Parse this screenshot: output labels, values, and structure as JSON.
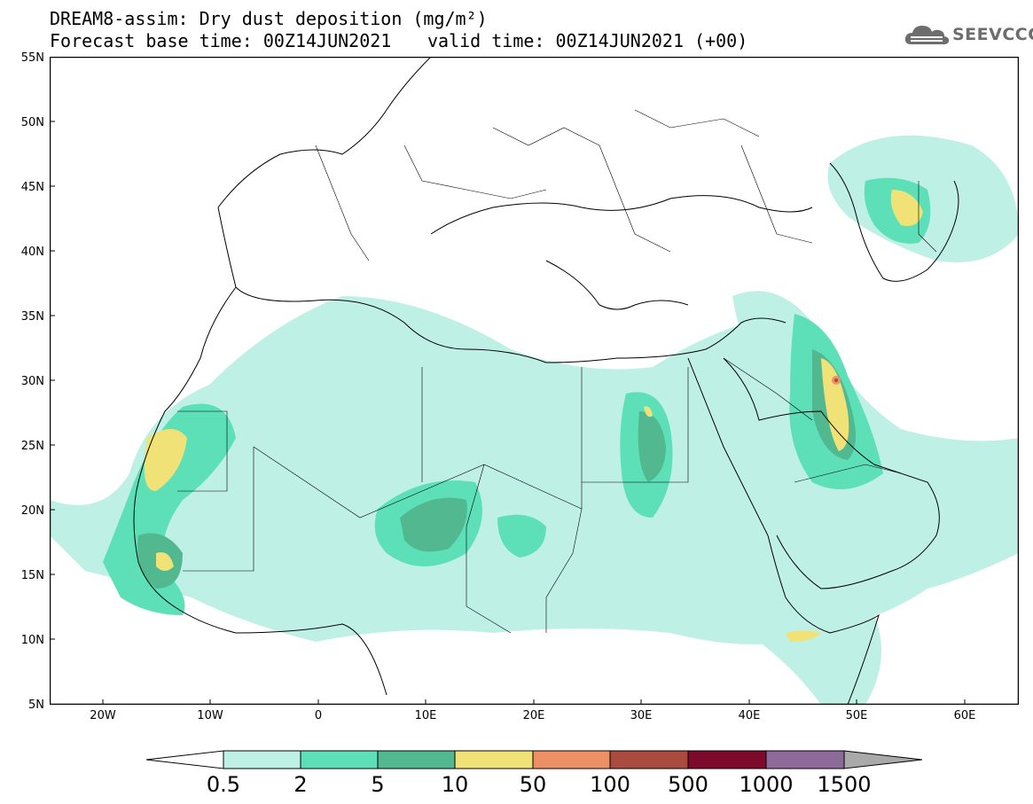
{
  "header": {
    "title_line1": "DREAM8-assim: Dry dust deposition (mg/m²)",
    "title_line2_left": "Forecast base time: 00Z14JUN2021",
    "title_line2_right": "valid time: 00Z14JUN2021 (+00)"
  },
  "logo": {
    "text": "SEEVCCC",
    "icon": "cloud-icon"
  },
  "map": {
    "region": "North Africa, Europe and Middle East",
    "lat_labels": [
      "55N",
      "50N",
      "45N",
      "40N",
      "35N",
      "30N",
      "25N",
      "20N",
      "15N",
      "10N",
      "5N"
    ],
    "lon_labels": [
      "20W",
      "10W",
      "0",
      "10E",
      "20E",
      "30E",
      "40E",
      "50E",
      "60E"
    ],
    "lat_range": [
      5,
      55
    ],
    "lon_range": [
      -25,
      65
    ]
  },
  "legend": {
    "labels": [
      "0.5",
      "2",
      "5",
      "10",
      "50",
      "100",
      "500",
      "1000",
      "1500"
    ],
    "colors": [
      "#ffffff",
      "#bff0e6",
      "#5de0b8",
      "#52b890",
      "#f0e276",
      "#ee9065",
      "#ab4a3e",
      "#7d0a2b",
      "#8e6a9b",
      "#a9a9a9"
    ]
  }
}
